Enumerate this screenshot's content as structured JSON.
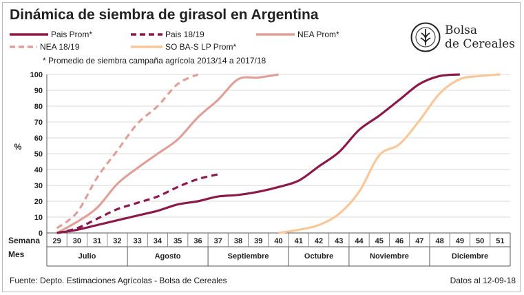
{
  "title": "Dinámica de siembra de girasol en Argentina",
  "note": "* Promedio de siembra campaña agrícola 2013/14  a 2017/18",
  "logo": {
    "line1": "Bolsa",
    "line2": "de Cereales"
  },
  "footer": {
    "source": "Fuente: Depto. Estimaciones Agrícolas - Bolsa de Cereales",
    "date": "Datos al 12-09-18"
  },
  "colors": {
    "pais": "#8b1a4a",
    "nea": "#e0a09a",
    "soba": "#f8c79a",
    "grid": "#d9d9d9"
  },
  "chart_data": {
    "type": "line",
    "ylabel": "%",
    "ylim": [
      0,
      100
    ],
    "yticks": [
      0,
      10,
      20,
      30,
      40,
      50,
      60,
      70,
      80,
      90,
      100
    ],
    "grid": "horizontal",
    "row_labels": {
      "week": "Semana",
      "month": "Mes"
    },
    "x_weeks": [
      29,
      30,
      31,
      32,
      33,
      34,
      35,
      36,
      37,
      38,
      39,
      40,
      41,
      42,
      43,
      44,
      45,
      46,
      47,
      48,
      49,
      50,
      51
    ],
    "months": [
      {
        "name": "Julio",
        "from": 29,
        "to": 32
      },
      {
        "name": "Agosto",
        "from": 33,
        "to": 36
      },
      {
        "name": "Septiembre",
        "from": 37,
        "to": 40
      },
      {
        "name": "Octubre",
        "from": 41,
        "to": 43
      },
      {
        "name": "Noviembre",
        "from": 44,
        "to": 47
      },
      {
        "name": "Diciembre",
        "from": 48,
        "to": 51
      }
    ],
    "series": [
      {
        "name": "Pais Prom*",
        "style": "solid",
        "color": "#8b1a4a",
        "x": [
          29,
          30,
          31,
          32,
          33,
          34,
          35,
          36,
          37,
          38,
          39,
          40,
          41,
          42,
          43,
          44,
          45,
          46,
          47,
          48,
          49
        ],
        "values": [
          0,
          2,
          5,
          8,
          11,
          14,
          18,
          20,
          23,
          24,
          26,
          29,
          33,
          42,
          51,
          65,
          74,
          84,
          94,
          99,
          100
        ]
      },
      {
        "name": "Pais 18/19",
        "style": "dashed",
        "color": "#8b1a4a",
        "x": [
          29,
          30,
          31,
          32,
          33,
          34,
          35,
          36,
          37
        ],
        "values": [
          0,
          3,
          9,
          15,
          19,
          23,
          29,
          34,
          37
        ]
      },
      {
        "name": "NEA Prom*",
        "style": "solid",
        "color": "#e0a09a",
        "x": [
          29,
          30,
          31,
          32,
          33,
          34,
          35,
          36,
          37,
          38,
          39,
          40
        ],
        "values": [
          0,
          7,
          16,
          31,
          41,
          50,
          59,
          73,
          84,
          97,
          98,
          100
        ]
      },
      {
        "name": "NEA 18/19",
        "style": "dashed",
        "color": "#e0a09a",
        "x": [
          29,
          30,
          31,
          32,
          33,
          34,
          35,
          36
        ],
        "values": [
          3,
          13,
          35,
          52,
          69,
          80,
          94,
          100
        ]
      },
      {
        "name": "SO BA-S LP Prom*",
        "style": "solid",
        "color": "#f8c79a",
        "x": [
          40,
          41,
          42,
          43,
          44,
          45,
          46,
          47,
          48,
          49,
          50,
          51
        ],
        "values": [
          0,
          2,
          5,
          12,
          26,
          49,
          56,
          71,
          88,
          97,
          99,
          100
        ]
      }
    ]
  }
}
